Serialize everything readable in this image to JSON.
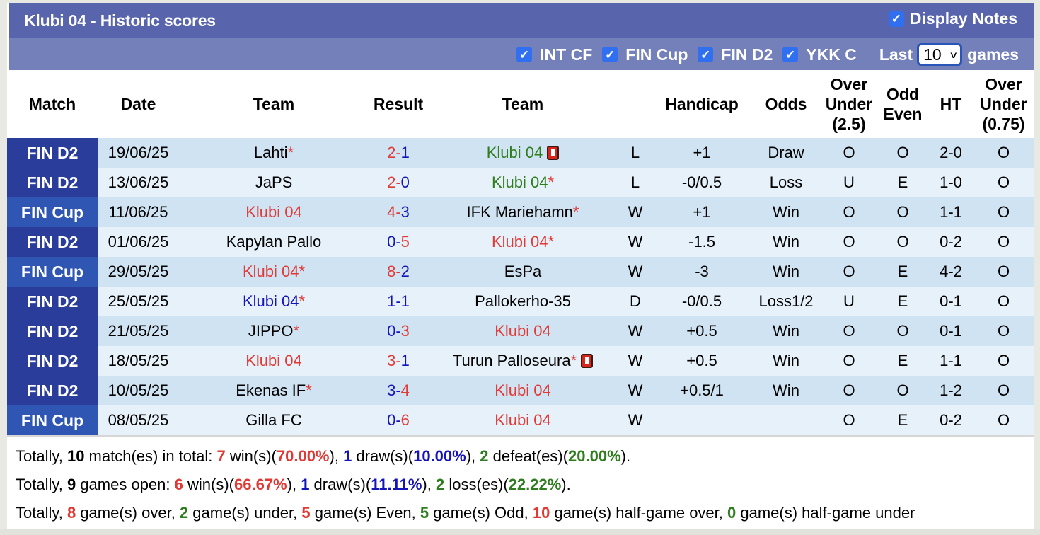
{
  "header": {
    "title": "Klubi 04 - Historic scores",
    "display_notes": {
      "label": "Display Notes",
      "checked": true,
      "icon": "checkmark-icon"
    }
  },
  "filters": {
    "items": [
      {
        "label": "INT CF",
        "checked": true
      },
      {
        "label": "FIN Cup",
        "checked": true
      },
      {
        "label": "FIN D2",
        "checked": true
      },
      {
        "label": "YKK C",
        "checked": true
      }
    ],
    "check_glyph": "✓",
    "last_label": "Last",
    "last_value": "10",
    "games_label": "games"
  },
  "colors": {
    "title_bar": "#5865ad",
    "filter_bar": "#7480ba",
    "match_fin_d2": "#2a3d9a",
    "match_fin_cup": "#2f56b3",
    "row_odd": "#cfe3f2",
    "row_even": "#e6f1fa",
    "red": "#e03a36",
    "blue": "#1414b8",
    "green": "#2e7d1e"
  },
  "table": {
    "columns": [
      "Match",
      "Date",
      "Team",
      "Result",
      "Team",
      "",
      "Handicap",
      "Odds",
      "Over Under (2.5)",
      "Odd Even",
      "HT",
      "Over Under (0.75)"
    ],
    "col_over_under_1": [
      "Over",
      "Under",
      "(2.5)"
    ],
    "col_odd_even": [
      "Odd",
      "Even"
    ],
    "col_over_under_2": [
      "Over",
      "Under",
      "(0.75)"
    ],
    "rows": [
      {
        "match": "FIN D2",
        "date": "19/06/25",
        "home": "Lahti",
        "home_star": "*",
        "home_color": "black",
        "score_h": "2",
        "score_a": "1",
        "sh_color": "red",
        "sa_color": "blue",
        "away": "Klubi 04",
        "away_star": "",
        "away_color": "green",
        "away_card": true,
        "wl": "L",
        "wl_color": "green",
        "handicap": "+1",
        "hc_color": "blue",
        "odds": "Draw",
        "odds_color": "blue",
        "ou": "O",
        "ou_color": "red",
        "oe": "O",
        "oe_color": "green",
        "ht": "2-0",
        "ou2": "O"
      },
      {
        "match": "FIN D2",
        "date": "13/06/25",
        "home": "JaPS",
        "home_star": "",
        "home_color": "black",
        "score_h": "2",
        "score_a": "0",
        "sh_color": "red",
        "sa_color": "blue",
        "away": "Klubi 04",
        "away_star": "*",
        "away_color": "green",
        "away_card": false,
        "wl": "L",
        "wl_color": "green",
        "handicap": "-0/0.5",
        "hc_color": "blue",
        "odds": "Loss",
        "odds_color": "green",
        "ou": "U",
        "ou_color": "green",
        "oe": "E",
        "oe_color": "red",
        "ht": "1-0",
        "ou2": "O"
      },
      {
        "match": "FIN Cup",
        "date": "11/06/25",
        "home": "Klubi 04",
        "home_star": "",
        "home_color": "red",
        "score_h": "4",
        "score_a": "3",
        "sh_color": "red",
        "sa_color": "blue",
        "away": "IFK Mariehamn",
        "away_star": "*",
        "away_color": "black",
        "away_card": false,
        "wl": "W",
        "wl_color": "red",
        "handicap": "+1",
        "hc_color": "blue",
        "odds": "Win",
        "odds_color": "red",
        "ou": "O",
        "ou_color": "red",
        "oe": "O",
        "oe_color": "green",
        "ht": "1-1",
        "ou2": "O"
      },
      {
        "match": "FIN D2",
        "date": "01/06/25",
        "home": "Kapylan Pallo",
        "home_star": "",
        "home_color": "black",
        "score_h": "0",
        "score_a": "5",
        "sh_color": "blue",
        "sa_color": "red",
        "away": "Klubi 04",
        "away_star": "*",
        "away_color": "red",
        "away_card": false,
        "wl": "W",
        "wl_color": "red",
        "handicap": "-1.5",
        "hc_color": "blue",
        "odds": "Win",
        "odds_color": "red",
        "ou": "O",
        "ou_color": "red",
        "oe": "O",
        "oe_color": "green",
        "ht": "0-2",
        "ou2": "O"
      },
      {
        "match": "FIN Cup",
        "date": "29/05/25",
        "home": "Klubi 04",
        "home_star": "*",
        "home_color": "red",
        "score_h": "8",
        "score_a": "2",
        "sh_color": "red",
        "sa_color": "blue",
        "away": "EsPa",
        "away_star": "",
        "away_color": "black",
        "away_card": false,
        "wl": "W",
        "wl_color": "red",
        "handicap": "-3",
        "hc_color": "black",
        "odds": "Win",
        "odds_color": "red",
        "ou": "O",
        "ou_color": "red",
        "oe": "E",
        "oe_color": "red",
        "ht": "4-2",
        "ou2": "O"
      },
      {
        "match": "FIN D2",
        "date": "25/05/25",
        "home": "Klubi 04",
        "home_star": "*",
        "home_color": "blue",
        "score_h": "1",
        "score_a": "1",
        "sh_color": "blue",
        "sa_color": "blue",
        "away": "Pallokerho-35",
        "away_star": "",
        "away_color": "black",
        "away_card": false,
        "wl": "D",
        "wl_color": "blue",
        "handicap": "-0/0.5",
        "hc_color": "blue",
        "odds": "Loss1/2",
        "odds_color": "green",
        "ou": "U",
        "ou_color": "green",
        "oe": "E",
        "oe_color": "red",
        "ht": "0-1",
        "ou2": "O"
      },
      {
        "match": "FIN D2",
        "date": "21/05/25",
        "home": "JIPPO",
        "home_star": "*",
        "home_color": "black",
        "score_h": "0",
        "score_a": "3",
        "sh_color": "blue",
        "sa_color": "red",
        "away": "Klubi 04",
        "away_star": "",
        "away_color": "red",
        "away_card": false,
        "wl": "W",
        "wl_color": "red",
        "handicap": "+0.5",
        "hc_color": "blue",
        "odds": "Win",
        "odds_color": "red",
        "ou": "O",
        "ou_color": "red",
        "oe": "O",
        "oe_color": "green",
        "ht": "0-1",
        "ou2": "O"
      },
      {
        "match": "FIN D2",
        "date": "18/05/25",
        "home": "Klubi 04",
        "home_star": "",
        "home_color": "red",
        "score_h": "3",
        "score_a": "1",
        "sh_color": "red",
        "sa_color": "blue",
        "away": "Turun Palloseura",
        "away_star": "*",
        "away_color": "black",
        "away_card": true,
        "wl": "W",
        "wl_color": "red",
        "handicap": "+0.5",
        "hc_color": "black",
        "odds": "Win",
        "odds_color": "red",
        "ou": "O",
        "ou_color": "red",
        "oe": "E",
        "oe_color": "red",
        "ht": "1-1",
        "ou2": "O"
      },
      {
        "match": "FIN D2",
        "date": "10/05/25",
        "home": "Ekenas IF",
        "home_star": "*",
        "home_color": "black",
        "score_h": "3",
        "score_a": "4",
        "sh_color": "blue",
        "sa_color": "red",
        "away": "Klubi 04",
        "away_star": "",
        "away_color": "red",
        "away_card": false,
        "wl": "W",
        "wl_color": "red",
        "handicap": "+0.5/1",
        "hc_color": "blue",
        "odds": "Win",
        "odds_color": "red",
        "ou": "O",
        "ou_color": "red",
        "oe": "O",
        "oe_color": "green",
        "ht": "1-2",
        "ou2": "O"
      },
      {
        "match": "FIN Cup",
        "date": "08/05/25",
        "home": "Gilla FC",
        "home_star": "",
        "home_color": "black",
        "score_h": "0",
        "score_a": "6",
        "sh_color": "blue",
        "sa_color": "red",
        "away": "Klubi 04",
        "away_star": "",
        "away_color": "red",
        "away_card": false,
        "wl": "W",
        "wl_color": "red",
        "handicap": "",
        "hc_color": "black",
        "odds": "",
        "odds_color": "black",
        "ou": "O",
        "ou_color": "red",
        "oe": "E",
        "oe_color": "red",
        "ht": "0-2",
        "ou2": "O"
      }
    ]
  },
  "summary": {
    "line1": {
      "p1": "Totally, ",
      "total": "10",
      "p2": " match(es) in total: ",
      "wins": "7",
      "p3": " win(s)(",
      "win_pct": "70.00%",
      "p4": "), ",
      "draws": "1",
      "p5": " draw(s)(",
      "draw_pct": "10.00%",
      "p6": "), ",
      "defeats": "2",
      "p7": " defeat(es)(",
      "defeat_pct": "20.00%",
      "p8": ")."
    },
    "line2": {
      "p1": "Totally, ",
      "total": "9",
      "p2": " games open: ",
      "wins": "6",
      "p3": " win(s)(",
      "win_pct": "66.67%",
      "p4": "), ",
      "draws": "1",
      "p5": " draw(s)(",
      "draw_pct": "11.11%",
      "p6": "), ",
      "losses": "2",
      "p7": " loss(es)(",
      "loss_pct": "22.22%",
      "p8": ")."
    },
    "line3": {
      "p1": "Totally, ",
      "over": "8",
      "p2": " game(s) over, ",
      "under": "2",
      "p3": " game(s) under, ",
      "even": "5",
      "p4": " game(s) Even, ",
      "odd": "5",
      "p5": " game(s) Odd, ",
      "half_over": "10",
      "p6": " game(s) half-game over, ",
      "half_under": "0",
      "p7": " game(s) half-game under"
    }
  }
}
